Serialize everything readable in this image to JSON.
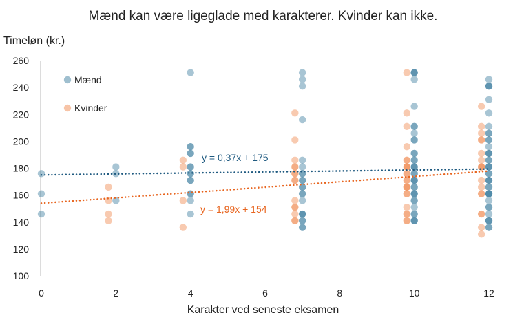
{
  "chart_data": {
    "type": "scatter",
    "title": "Mænd kan være ligeglade med karakterer. Kvinder kan ikke.",
    "xlabel": "Karakter ved seneste eksamen",
    "ylabel": "Timeløn (kr.)",
    "xlim": [
      0,
      12
    ],
    "ylim": [
      100,
      260
    ],
    "xticks": [
      "0",
      "2",
      "4",
      "6",
      "8",
      "10",
      "12"
    ],
    "yticks": [
      "100",
      "120",
      "140",
      "160",
      "180",
      "200",
      "220",
      "240",
      "260"
    ],
    "legend_position": "top-left",
    "series": [
      {
        "name": "Mænd",
        "color": "#3f7fa0",
        "points": [
          [
            0,
            176,
            1
          ],
          [
            0,
            161,
            1
          ],
          [
            0,
            146,
            1
          ],
          [
            2,
            181,
            1
          ],
          [
            2,
            176,
            1
          ],
          [
            2,
            156,
            1
          ],
          [
            4,
            251,
            1
          ],
          [
            4,
            196,
            2
          ],
          [
            4,
            191,
            2
          ],
          [
            4,
            181,
            2
          ],
          [
            4,
            176,
            2
          ],
          [
            4,
            171,
            2
          ],
          [
            4,
            161,
            2
          ],
          [
            4,
            156,
            1
          ],
          [
            4,
            146,
            1
          ],
          [
            7,
            251,
            1
          ],
          [
            7,
            246,
            1
          ],
          [
            7,
            241,
            1
          ],
          [
            7,
            216,
            1
          ],
          [
            7,
            186,
            1
          ],
          [
            7,
            181,
            1
          ],
          [
            7,
            176,
            2
          ],
          [
            7,
            171,
            2
          ],
          [
            7,
            166,
            2
          ],
          [
            7,
            161,
            2
          ],
          [
            7,
            156,
            1
          ],
          [
            7,
            146,
            3
          ],
          [
            7,
            141,
            2
          ],
          [
            7,
            136,
            2
          ],
          [
            10,
            251,
            3
          ],
          [
            10,
            246,
            1
          ],
          [
            10,
            226,
            1
          ],
          [
            10,
            211,
            2
          ],
          [
            10,
            206,
            1
          ],
          [
            10,
            201,
            2
          ],
          [
            10,
            191,
            2
          ],
          [
            10,
            186,
            2
          ],
          [
            10,
            181,
            3
          ],
          [
            10,
            176,
            2
          ],
          [
            10,
            171,
            3
          ],
          [
            10,
            166,
            2
          ],
          [
            10,
            161,
            3
          ],
          [
            10,
            156,
            2
          ],
          [
            10,
            151,
            1
          ],
          [
            10,
            146,
            2
          ],
          [
            10,
            141,
            3
          ],
          [
            12,
            246,
            1
          ],
          [
            12,
            241,
            3
          ],
          [
            12,
            231,
            1
          ],
          [
            12,
            221,
            1
          ],
          [
            12,
            211,
            1
          ],
          [
            12,
            206,
            2
          ],
          [
            12,
            201,
            2
          ],
          [
            12,
            196,
            1
          ],
          [
            12,
            191,
            3
          ],
          [
            12,
            186,
            2
          ],
          [
            12,
            181,
            3
          ],
          [
            12,
            176,
            2
          ],
          [
            12,
            171,
            3
          ],
          [
            12,
            166,
            2
          ],
          [
            12,
            161,
            4
          ],
          [
            12,
            156,
            1
          ],
          [
            12,
            151,
            2
          ],
          [
            12,
            146,
            1
          ],
          [
            12,
            141,
            3
          ],
          [
            12,
            136,
            2
          ]
        ]
      },
      {
        "name": "Kvinder",
        "color": "#ef8a50",
        "points": [
          [
            1.8,
            166,
            1
          ],
          [
            1.8,
            156,
            1
          ],
          [
            1.8,
            146,
            1
          ],
          [
            1.8,
            141,
            1
          ],
          [
            3.8,
            186,
            1
          ],
          [
            3.8,
            181,
            1
          ],
          [
            3.8,
            156,
            1
          ],
          [
            3.8,
            136,
            1
          ],
          [
            6.8,
            221,
            1
          ],
          [
            6.8,
            201,
            1
          ],
          [
            6.8,
            186,
            1
          ],
          [
            6.8,
            181,
            2
          ],
          [
            6.8,
            176,
            2
          ],
          [
            6.8,
            171,
            2
          ],
          [
            6.8,
            156,
            1
          ],
          [
            6.8,
            151,
            2
          ],
          [
            6.8,
            146,
            1
          ],
          [
            6.8,
            141,
            2
          ],
          [
            9.8,
            251,
            1
          ],
          [
            9.8,
            221,
            1
          ],
          [
            9.8,
            211,
            1
          ],
          [
            9.8,
            196,
            1
          ],
          [
            9.8,
            186,
            2
          ],
          [
            9.8,
            181,
            3
          ],
          [
            9.8,
            176,
            2
          ],
          [
            9.8,
            171,
            2
          ],
          [
            9.8,
            166,
            3
          ],
          [
            9.8,
            161,
            2
          ],
          [
            9.8,
            151,
            1
          ],
          [
            9.8,
            146,
            2
          ],
          [
            9.8,
            141,
            2
          ],
          [
            11.8,
            226,
            1
          ],
          [
            11.8,
            211,
            1
          ],
          [
            11.8,
            206,
            1
          ],
          [
            11.8,
            201,
            2
          ],
          [
            11.8,
            191,
            1
          ],
          [
            11.8,
            186,
            1
          ],
          [
            11.8,
            181,
            3
          ],
          [
            11.8,
            171,
            1
          ],
          [
            11.8,
            166,
            1
          ],
          [
            11.8,
            161,
            2
          ],
          [
            11.8,
            146,
            2
          ],
          [
            11.8,
            136,
            1
          ],
          [
            11.8,
            131,
            1
          ]
        ]
      }
    ],
    "trendlines": [
      {
        "series": "Mænd",
        "slope": 0.37,
        "intercept": 175,
        "label": "y = 0,37x + 175",
        "color": "#1f5a80"
      },
      {
        "series": "Kvinder",
        "slope": 1.99,
        "intercept": 154,
        "label": "y = 1,99x + 154",
        "color": "#e8651f"
      }
    ]
  }
}
